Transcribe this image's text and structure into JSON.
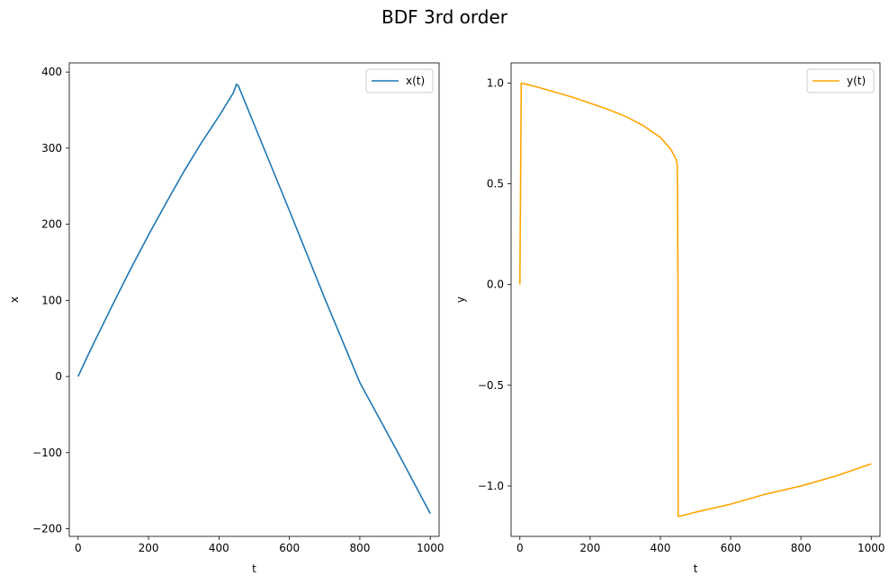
{
  "figure": {
    "title": "BDF 3rd order"
  },
  "chart_data": [
    {
      "type": "line",
      "xlabel": "t",
      "ylabel": "x",
      "xlim": [
        -25,
        1025
      ],
      "ylim": [
        -210,
        412
      ],
      "xticks": [
        0,
        200,
        400,
        600,
        800,
        1000
      ],
      "yticks": [
        -200,
        -100,
        0,
        100,
        200,
        300,
        400
      ],
      "xtick_labels": [
        "0",
        "200",
        "400",
        "600",
        "800",
        "1000"
      ],
      "ytick_labels": [
        "−200",
        "−100",
        "0",
        "100",
        "200",
        "300",
        "400"
      ],
      "grid": false,
      "legend": "top-right",
      "series": [
        {
          "name": "x(t)",
          "color": "#1f77b4",
          "x": [
            0,
            25,
            50,
            100,
            150,
            200,
            250,
            300,
            350,
            400,
            440,
            450,
            455,
            500,
            600,
            700,
            800,
            900,
            1000
          ],
          "y": [
            0,
            25,
            49,
            96,
            142,
            186,
            228,
            269,
            307,
            342,
            372,
            384,
            382,
            331,
            218,
            103,
            -8,
            -93,
            -180
          ]
        }
      ]
    },
    {
      "type": "line",
      "xlabel": "t",
      "ylabel": "y",
      "xlim": [
        -25,
        1025
      ],
      "ylim": [
        -1.25,
        1.1
      ],
      "xticks": [
        0,
        200,
        400,
        600,
        800,
        1000
      ],
      "yticks": [
        -1.0,
        -0.5,
        0.0,
        0.5,
        1.0
      ],
      "xtick_labels": [
        "0",
        "200",
        "400",
        "600",
        "800",
        "1000"
      ],
      "ytick_labels": [
        "−1.0",
        "−0.5",
        "0.0",
        "0.5",
        "1.0"
      ],
      "grid": false,
      "legend": "top-right",
      "series": [
        {
          "name": "y(t)",
          "color": "#ffa500",
          "x": [
            0,
            4,
            50,
            100,
            150,
            200,
            250,
            300,
            350,
            400,
            430,
            445,
            448,
            450,
            450.5,
            455,
            500,
            600,
            700,
            800,
            900,
            1000
          ],
          "y": [
            0.0,
            1.0,
            0.98,
            0.955,
            0.93,
            0.9,
            0.87,
            0.835,
            0.79,
            0.73,
            0.67,
            0.62,
            0.59,
            0.0,
            -1.15,
            -1.15,
            -1.13,
            -1.09,
            -1.04,
            -1.0,
            -0.95,
            -0.89
          ]
        }
      ]
    }
  ]
}
